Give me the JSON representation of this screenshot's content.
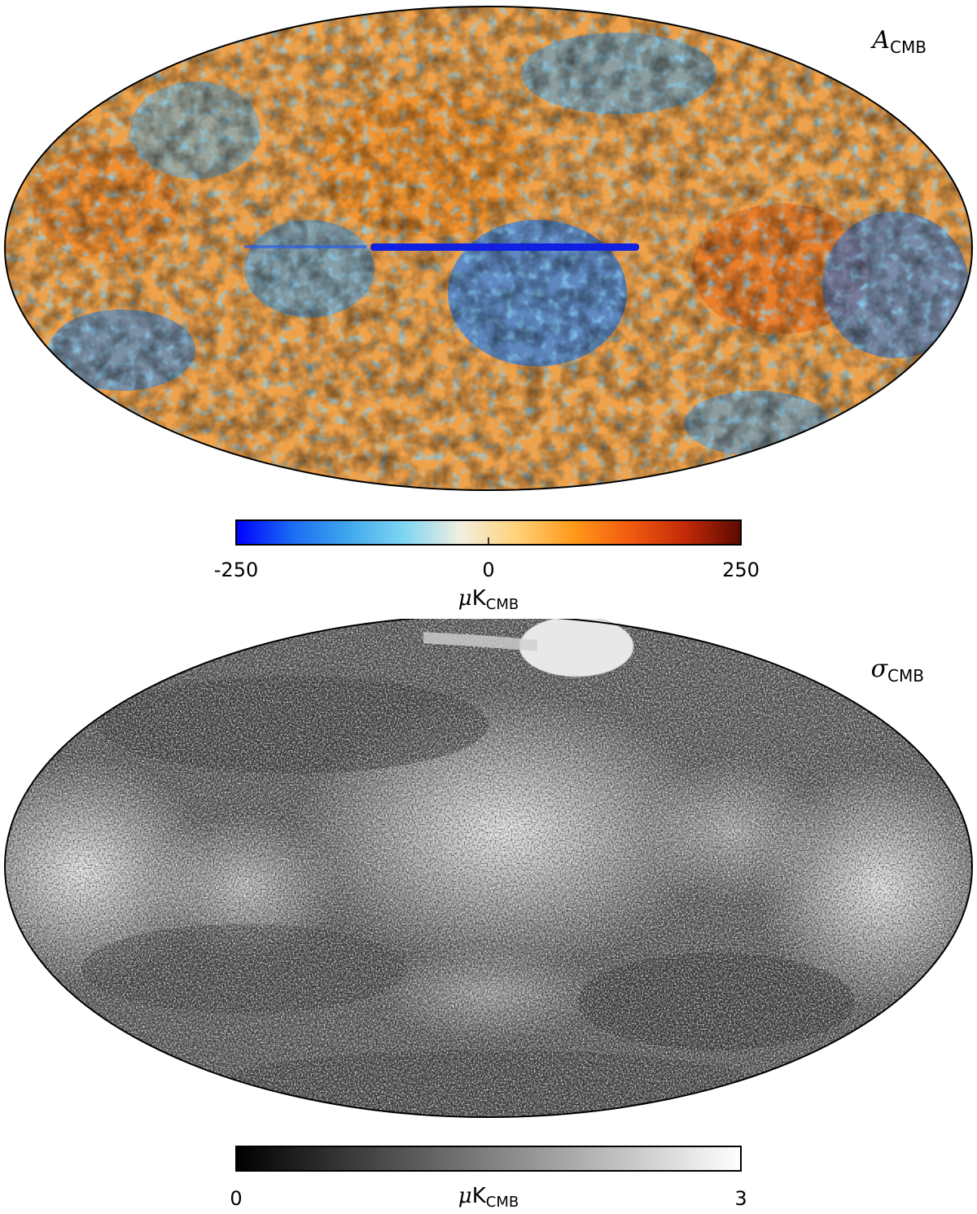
{
  "maps": [
    {
      "id": "amplitude",
      "label_symbol": "A",
      "label_subscript": "CMB",
      "colorbar": {
        "colormap": "planck",
        "colors": [
          "#0000ff",
          "#1a6cf2",
          "#3fa7ec",
          "#7fd6f2",
          "#f2efe0",
          "#ffd27a",
          "#ff9a1a",
          "#f25c10",
          "#c42a08",
          "#5a0a00"
        ],
        "min_label": "-250",
        "mid_label": "0",
        "max_label": "250",
        "unit_mu": "μ",
        "unit_main": "K",
        "unit_sub": "CMB"
      }
    },
    {
      "id": "uncertainty",
      "label_symbol": "σ",
      "label_subscript": "CMB",
      "colorbar": {
        "colormap": "grayscale",
        "colors": [
          "#000000",
          "#ffffff"
        ],
        "min_label": "0",
        "max_label": "3",
        "unit_mu": "μ",
        "unit_main": "K",
        "unit_sub": "CMB"
      }
    }
  ]
}
